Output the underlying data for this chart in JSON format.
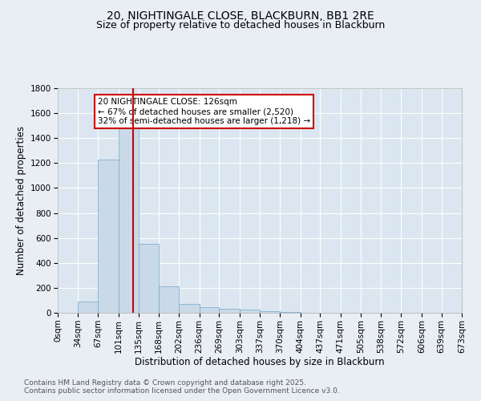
{
  "title": "20, NIGHTINGALE CLOSE, BLACKBURN, BB1 2RE",
  "subtitle": "Size of property relative to detached houses in Blackburn",
  "xlabel": "Distribution of detached houses by size in Blackburn",
  "ylabel": "Number of detached properties",
  "bin_edges": [
    0,
    34,
    67,
    101,
    135,
    168,
    202,
    236,
    269,
    303,
    337,
    370,
    404,
    437,
    471,
    505,
    538,
    572,
    606,
    639,
    673
  ],
  "bin_labels": [
    "0sqm",
    "34sqm",
    "67sqm",
    "101sqm",
    "135sqm",
    "168sqm",
    "202sqm",
    "236sqm",
    "269sqm",
    "303sqm",
    "337sqm",
    "370sqm",
    "404sqm",
    "437sqm",
    "471sqm",
    "505sqm",
    "538sqm",
    "572sqm",
    "606sqm",
    "639sqm",
    "673sqm"
  ],
  "bar_heights": [
    0,
    90,
    1230,
    1580,
    550,
    210,
    70,
    45,
    35,
    25,
    10,
    5,
    3,
    2,
    1,
    1,
    0,
    0,
    0,
    0
  ],
  "bar_color": "#c9d9e8",
  "bar_edgecolor": "#6fa8cc",
  "property_size": 126,
  "vline_color": "#cc0000",
  "annotation_text": "20 NIGHTINGALE CLOSE: 126sqm\n← 67% of detached houses are smaller (2,520)\n32% of semi-detached houses are larger (1,218) →",
  "annotation_box_edgecolor": "#cc0000",
  "annotation_box_facecolor": "#ffffff",
  "ylim": [
    0,
    1800
  ],
  "yticks": [
    0,
    200,
    400,
    600,
    800,
    1000,
    1200,
    1400,
    1600,
    1800
  ],
  "background_color": "#e8eef4",
  "plot_background_color": "#dce6f0",
  "grid_color": "#ffffff",
  "footer_line1": "Contains HM Land Registry data © Crown copyright and database right 2025.",
  "footer_line2": "Contains public sector information licensed under the Open Government Licence v3.0.",
  "title_fontsize": 10,
  "subtitle_fontsize": 9,
  "xlabel_fontsize": 8.5,
  "ylabel_fontsize": 8.5,
  "tick_fontsize": 7.5,
  "footer_fontsize": 6.5,
  "annotation_fontsize": 7.5
}
